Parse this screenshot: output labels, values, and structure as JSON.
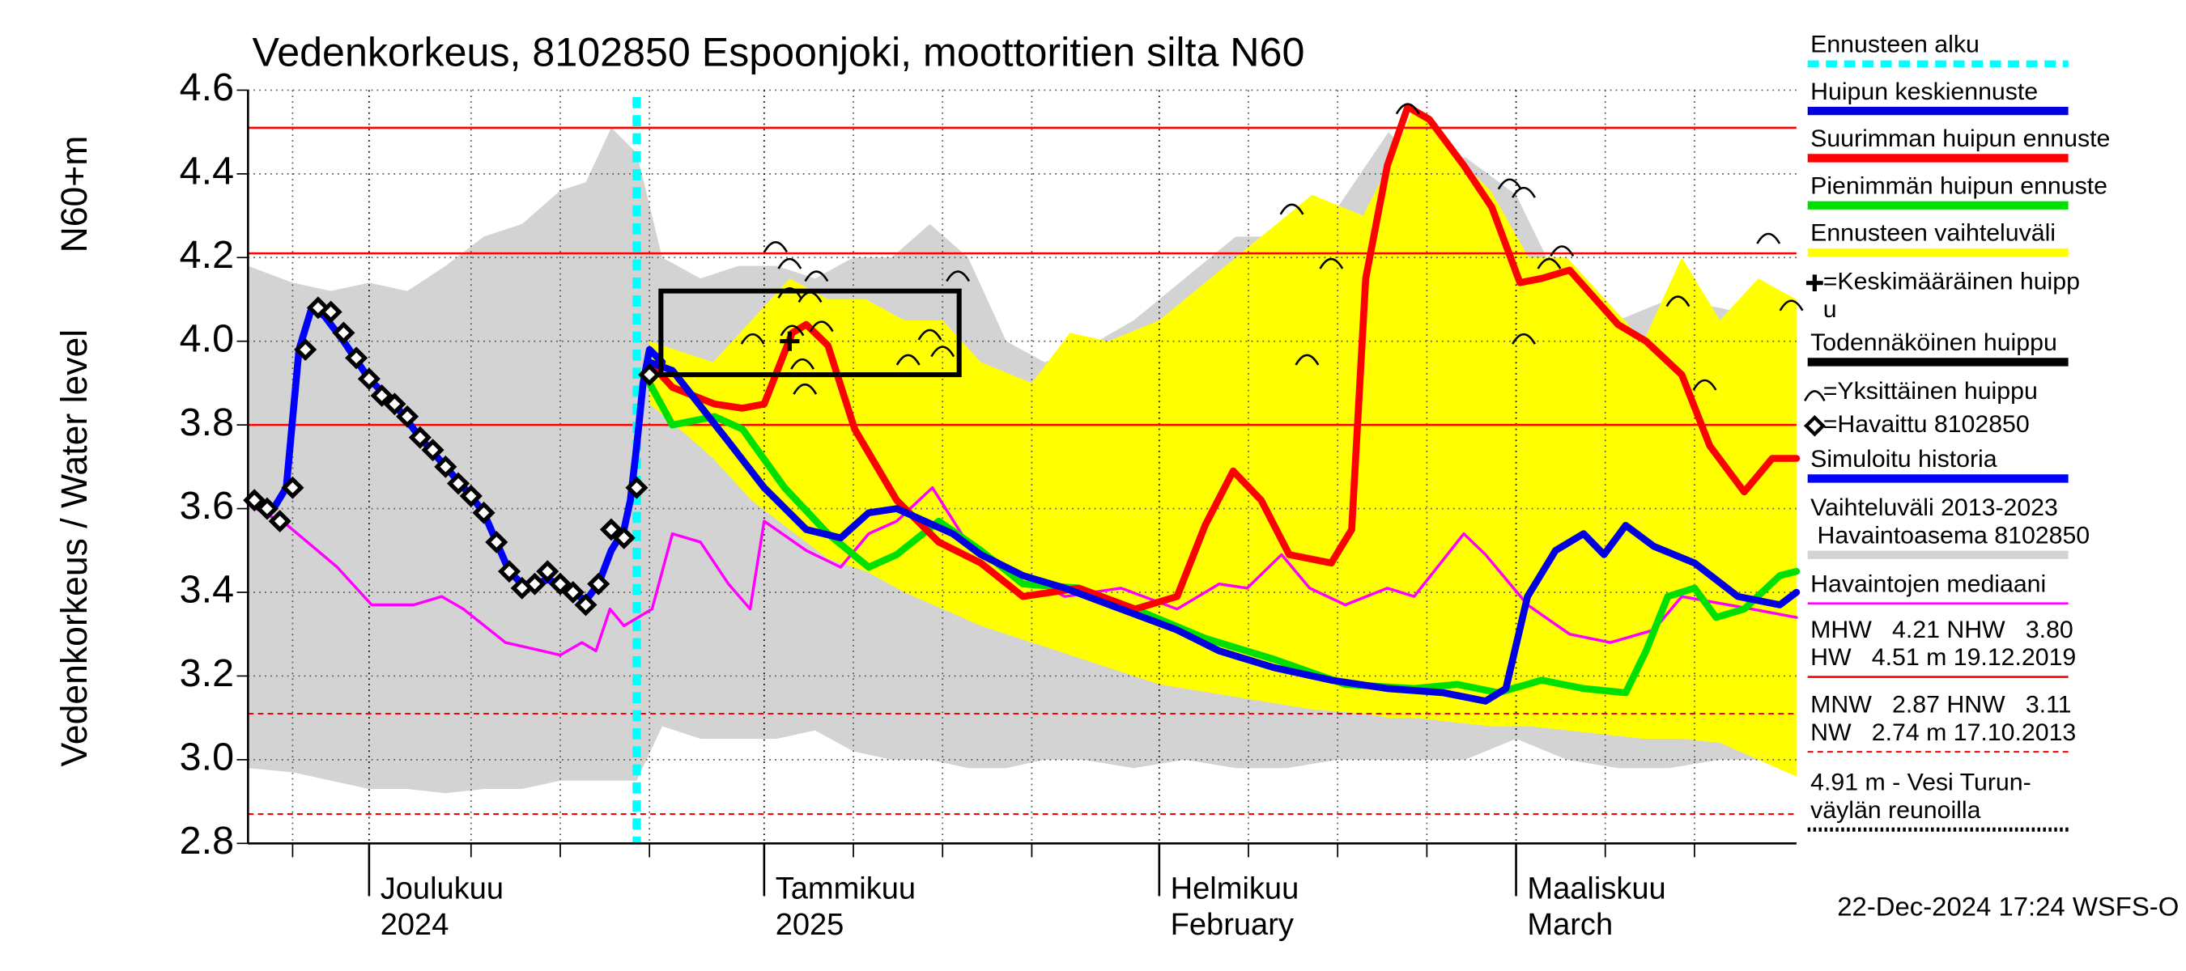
{
  "chart_data": {
    "type": "line",
    "title": "Vedenkorkeus, 8102850 Espoonjoki, moottoritien silta N60",
    "ylabel": "Vedenkorkeus / Water level",
    "ylabel2": "N60+m",
    "footer": "22-Dec-2024 17:24 WSFS-O",
    "xlim": [
      -9.5,
      112
    ],
    "ylim": [
      2.8,
      4.6
    ],
    "yticks": [
      2.8,
      {
        "value": 3,
        "label": "3.0"
      },
      3.2,
      3.4,
      3.6,
      3.8,
      {
        "value": 4,
        "label": "4.0"
      },
      4.2,
      4.4,
      4.6
    ],
    "xticks": [
      {
        "value": 0,
        "label": "Joulukuu"
      },
      {
        "value": 31,
        "label": "Tammikuu"
      },
      {
        "value": 62,
        "label": "Helmikuu"
      },
      {
        "value": 90,
        "label": "Maaliskuu"
      }
    ],
    "xtick_sublabels": [
      "2024",
      "2025",
      "February",
      "March"
    ],
    "xgrid": [
      -6,
      8,
      15,
      22,
      38,
      45,
      52,
      69,
      76,
      83,
      97,
      104
    ],
    "grid": true,
    "forecast_start": 21,
    "hlines": [
      {
        "value": 4.51,
        "color": "#ff0000",
        "style": "solid"
      },
      {
        "value": 4.21,
        "color": "#ff0000",
        "style": "solid"
      },
      {
        "value": 3.8,
        "color": "#ff0000",
        "style": "solid"
      },
      {
        "value": 3.11,
        "color": "#ff0000",
        "style": "dashed"
      },
      {
        "value": 2.87,
        "color": "#ff0000",
        "style": "dashed"
      }
    ],
    "series": [
      {
        "kind": "band",
        "color": "#d3d3d3",
        "x": [
          -9.5,
          -6,
          -3,
          0,
          3,
          6,
          9,
          12,
          15,
          17,
          19,
          21,
          23,
          26,
          29,
          32,
          35,
          38,
          41,
          44,
          47,
          50,
          53,
          56,
          60,
          64,
          68,
          72,
          76,
          80,
          83,
          86,
          90,
          94,
          98,
          102,
          106,
          110,
          112
        ],
        "upper": [
          4.18,
          4.14,
          4.12,
          4.14,
          4.12,
          4.18,
          4.25,
          4.28,
          4.36,
          4.38,
          4.51,
          4.45,
          4.2,
          4.15,
          4.18,
          4.18,
          4.15,
          4.2,
          4.2,
          4.28,
          4.2,
          4.0,
          3.95,
          3.98,
          4.05,
          4.15,
          4.25,
          4.25,
          4.32,
          4.5,
          4.4,
          4.44,
          4.35,
          4.1,
          4.05,
          4.1,
          4.08,
          4.05,
          4.05
        ],
        "lower": [
          2.98,
          2.97,
          2.95,
          2.93,
          2.93,
          2.92,
          2.93,
          2.93,
          2.95,
          2.95,
          2.95,
          2.95,
          3.08,
          3.05,
          3.05,
          3.05,
          3.07,
          3.02,
          3.0,
          3.0,
          2.98,
          2.98,
          3.0,
          3.0,
          2.98,
          3.0,
          2.98,
          2.98,
          3.0,
          3.0,
          3.0,
          3.0,
          3.05,
          3.0,
          2.98,
          2.98,
          3.0,
          3.0,
          3.0
        ]
      },
      {
        "kind": "band",
        "color": "#ffff00",
        "x": [
          22,
          24,
          27,
          30,
          33,
          36,
          39,
          42,
          45,
          48,
          52,
          55,
          58,
          62,
          66,
          70,
          74,
          78,
          80,
          82,
          85,
          88,
          91,
          94,
          97,
          100,
          103,
          106,
          109,
          112
        ],
        "upper": [
          4.0,
          3.98,
          3.95,
          4.05,
          4.15,
          4.1,
          4.1,
          4.05,
          4.05,
          3.95,
          3.9,
          4.02,
          4.0,
          4.05,
          4.15,
          4.25,
          4.35,
          4.3,
          4.42,
          4.56,
          4.45,
          4.36,
          4.2,
          4.2,
          4.1,
          4.0,
          4.2,
          4.05,
          4.15,
          4.1
        ],
        "lower": [
          3.85,
          3.8,
          3.72,
          3.62,
          3.55,
          3.48,
          3.45,
          3.4,
          3.36,
          3.32,
          3.28,
          3.25,
          3.22,
          3.18,
          3.16,
          3.14,
          3.12,
          3.11,
          3.1,
          3.1,
          3.09,
          3.08,
          3.08,
          3.07,
          3.06,
          3.05,
          3.05,
          3.04,
          3.0,
          2.96
        ]
      },
      {
        "kind": "line",
        "color": "#ff00ff",
        "width": 2,
        "x": [
          -9.5,
          -6.4,
          -2.5,
          0.2,
          3.5,
          5.7,
          7.4,
          10.7,
          15,
          16.7,
          17.8,
          18.9,
          20,
          22.2,
          23.8,
          26,
          28.2,
          29.9,
          31,
          34.3,
          37,
          39.2,
          41.4,
          44.2,
          46.9,
          50.2,
          54.6,
          59,
          63.4,
          66.7,
          68.9,
          71.6,
          73.8,
          76.6,
          79.9,
          82,
          85.9,
          87.6,
          90.9,
          94.2,
          97.4,
          100.8,
          103,
          108.5,
          112
        ],
        "values": [
          3.61,
          3.56,
          3.46,
          3.37,
          3.37,
          3.39,
          3.36,
          3.28,
          3.25,
          3.28,
          3.26,
          3.36,
          3.32,
          3.36,
          3.54,
          3.52,
          3.42,
          3.36,
          3.57,
          3.5,
          3.46,
          3.54,
          3.57,
          3.65,
          3.52,
          3.46,
          3.39,
          3.41,
          3.36,
          3.42,
          3.41,
          3.49,
          3.41,
          3.37,
          3.41,
          3.39,
          3.54,
          3.49,
          3.37,
          3.3,
          3.28,
          3.31,
          3.39,
          3.36,
          3.34
        ]
      },
      {
        "kind": "line",
        "color": "#00e000",
        "width": 5,
        "x": [
          22,
          23.8,
          27.1,
          29.3,
          32.6,
          36,
          39.2,
          41.4,
          44.7,
          48,
          51.3,
          55.7,
          60.1,
          65.6,
          71,
          76.6,
          82,
          85.4,
          88.6,
          92,
          95.3,
          98.6,
          100.2,
          101.9,
          104,
          105.7,
          107.9,
          110.7,
          112
        ],
        "values": [
          3.9,
          3.8,
          3.82,
          3.79,
          3.65,
          3.54,
          3.46,
          3.49,
          3.57,
          3.5,
          3.42,
          3.41,
          3.36,
          3.29,
          3.24,
          3.18,
          3.17,
          3.18,
          3.16,
          3.19,
          3.17,
          3.16,
          3.26,
          3.39,
          3.41,
          3.34,
          3.36,
          3.44,
          3.45
        ]
      },
      {
        "kind": "line",
        "color": "#ff0000",
        "width": 5,
        "x": [
          22,
          23.8,
          27.1,
          29.3,
          31,
          33.2,
          34.3,
          36,
          38.1,
          41.4,
          44.7,
          48,
          51.3,
          55.7,
          60.1,
          63.4,
          65.6,
          67.8,
          70,
          72.2,
          75.5,
          77.1,
          78.2,
          79.9,
          81.5,
          83.2,
          85.9,
          88.1,
          90.3,
          92,
          94.2,
          98,
          100.2,
          103,
          105.2,
          107.9,
          110.1,
          112
        ],
        "values": [
          3.95,
          3.89,
          3.85,
          3.84,
          3.85,
          4.02,
          4.04,
          3.99,
          3.79,
          3.62,
          3.52,
          3.47,
          3.39,
          3.41,
          3.36,
          3.39,
          3.56,
          3.69,
          3.62,
          3.49,
          3.47,
          3.55,
          4.15,
          4.42,
          4.56,
          4.53,
          4.42,
          4.32,
          4.14,
          4.15,
          4.17,
          4.04,
          4.0,
          3.92,
          3.75,
          3.64,
          3.72,
          3.72
        ]
      },
      {
        "kind": "line",
        "color": "#0000e0",
        "width": 5,
        "x": [
          22,
          23.8,
          28.2,
          31,
          34.3,
          37,
          39.2,
          41.4,
          45.8,
          48,
          51.3,
          54.6,
          59,
          63.4,
          66.7,
          71,
          75.5,
          79.9,
          84.3,
          87.6,
          89.2,
          90.9,
          93.1,
          95.3,
          96.9,
          98.6,
          100.8,
          104,
          107.4,
          110.7,
          112
        ],
        "values": [
          3.95,
          3.93,
          3.76,
          3.65,
          3.55,
          3.53,
          3.59,
          3.6,
          3.54,
          3.49,
          3.44,
          3.41,
          3.36,
          3.31,
          3.26,
          3.22,
          3.19,
          3.17,
          3.16,
          3.14,
          3.17,
          3.39,
          3.5,
          3.54,
          3.49,
          3.56,
          3.51,
          3.47,
          3.39,
          3.37,
          3.4
        ]
      },
      {
        "kind": "line",
        "color": "#0000ff",
        "width": 5,
        "x": [
          -9.5,
          -7.5,
          -6.5,
          -5.5,
          -4.5,
          -3.5,
          -2,
          0,
          2,
          4,
          6,
          8,
          9,
          10,
          11,
          12,
          13,
          14,
          15,
          16,
          17,
          18,
          19,
          20,
          20.5,
          21,
          21.5,
          22,
          23
        ],
        "values": [
          3.62,
          3.6,
          3.65,
          3.98,
          4.08,
          4.06,
          4.0,
          3.91,
          3.85,
          3.77,
          3.7,
          3.63,
          3.59,
          3.52,
          3.45,
          3.42,
          3.42,
          3.43,
          3.42,
          3.4,
          3.38,
          3.42,
          3.5,
          3.55,
          3.62,
          3.75,
          3.9,
          3.98,
          3.95
        ]
      },
      {
        "kind": "markers",
        "color": "#000000",
        "x": [
          -9,
          -8,
          -7,
          -6,
          -5,
          -4,
          -3,
          -2,
          -1,
          0,
          1,
          2,
          3,
          4,
          5,
          6,
          7,
          8,
          9,
          10,
          11,
          12,
          13,
          14,
          15,
          16,
          17,
          18,
          19,
          20,
          21,
          22
        ],
        "values": [
          3.62,
          3.6,
          3.57,
          3.65,
          3.98,
          4.08,
          4.07,
          4.02,
          3.96,
          3.91,
          3.87,
          3.85,
          3.82,
          3.77,
          3.74,
          3.7,
          3.66,
          3.63,
          3.59,
          3.52,
          3.45,
          3.41,
          3.42,
          3.45,
          3.42,
          3.4,
          3.37,
          3.42,
          3.55,
          3.53,
          3.65,
          3.92
        ]
      },
      {
        "kind": "arcs",
        "color": "#000000",
        "x": [
          30.1,
          31.9,
          33,
          33,
          34.6,
          35.1,
          35.5,
          34,
          34.2,
          33.2,
          42.3,
          44,
          45,
          46.2,
          72.4,
          73.6,
          75.5,
          81.5,
          89.5,
          90.6,
          92.6,
          93.6,
          90.6,
          102.7,
          104.8,
          109.8,
          111.6
        ],
        "values": [
          4.01,
          4.23,
          4.19,
          4.12,
          4.11,
          4.16,
          4.04,
          3.95,
          3.89,
          4.03,
          3.96,
          4.02,
          3.98,
          4.16,
          4.32,
          3.96,
          4.19,
          4.56,
          4.38,
          4.36,
          4.19,
          4.22,
          4.01,
          4.1,
          3.9,
          4.25,
          4.09
        ]
      }
    ],
    "probable_peak": {
      "x": [
        22.9,
        46.3
      ],
      "y": [
        3.92,
        4.12
      ]
    },
    "mean_peak": {
      "x": 33,
      "y": 4.0
    },
    "legend": [
      {
        "lines": [
          "Ennusteen alku"
        ],
        "color": "#00ffff",
        "style": "dashed"
      },
      {
        "lines": [
          "Huipun keskiennuste"
        ],
        "color": "#0000e0",
        "style": "solid"
      },
      {
        "lines": [
          "Suurimman huipun ennuste"
        ],
        "color": "#ff0000",
        "style": "solid"
      },
      {
        "lines": [
          "Pienimmän huipun ennuste"
        ],
        "color": "#00e000",
        "style": "solid"
      },
      {
        "lines": [
          "Ennusteen vaihteluväli"
        ],
        "color": "#ffff00",
        "style": "solid"
      },
      {
        "lines": [
          "=Keskimääräinen huipp",
          "u"
        ],
        "color": "#000000",
        "style": "cross"
      },
      {
        "lines": [
          "Todennäköinen huippu"
        ],
        "color": "#000000",
        "style": "solid"
      },
      {
        "lines": [
          "=Yksittäinen huippu"
        ],
        "color": "#000000",
        "style": "arc"
      },
      {
        "lines": [
          "=Havaittu 8102850"
        ],
        "color": "#000000",
        "style": "diamond"
      },
      {
        "lines": [
          "Simuloitu historia"
        ],
        "color": "#0000ff",
        "style": "solid"
      },
      {
        "lines": [
          "Vaihteluväli 2013-2023",
          " Havaintoasema 8102850"
        ],
        "color": "#d3d3d3",
        "style": "solid"
      },
      {
        "lines": [
          "Havaintojen mediaani"
        ],
        "color": "#ff00ff",
        "style": "thin"
      },
      {
        "lines": [
          "MHW   4.21 NHW   3.80",
          "HW   4.51 m 19.12.2019"
        ],
        "color": "#ff0000",
        "style": "thin"
      },
      {
        "lines": [
          "MNW   2.87 HNW   3.11",
          "NW   2.74 m 17.10.2013"
        ],
        "color": "#ff0000",
        "style": "dashed-thin"
      },
      {
        "lines": [
          "4.91 m - Vesi Turun-",
          "väylän reunoilla"
        ],
        "color": "#000000",
        "style": "dotted"
      }
    ]
  }
}
